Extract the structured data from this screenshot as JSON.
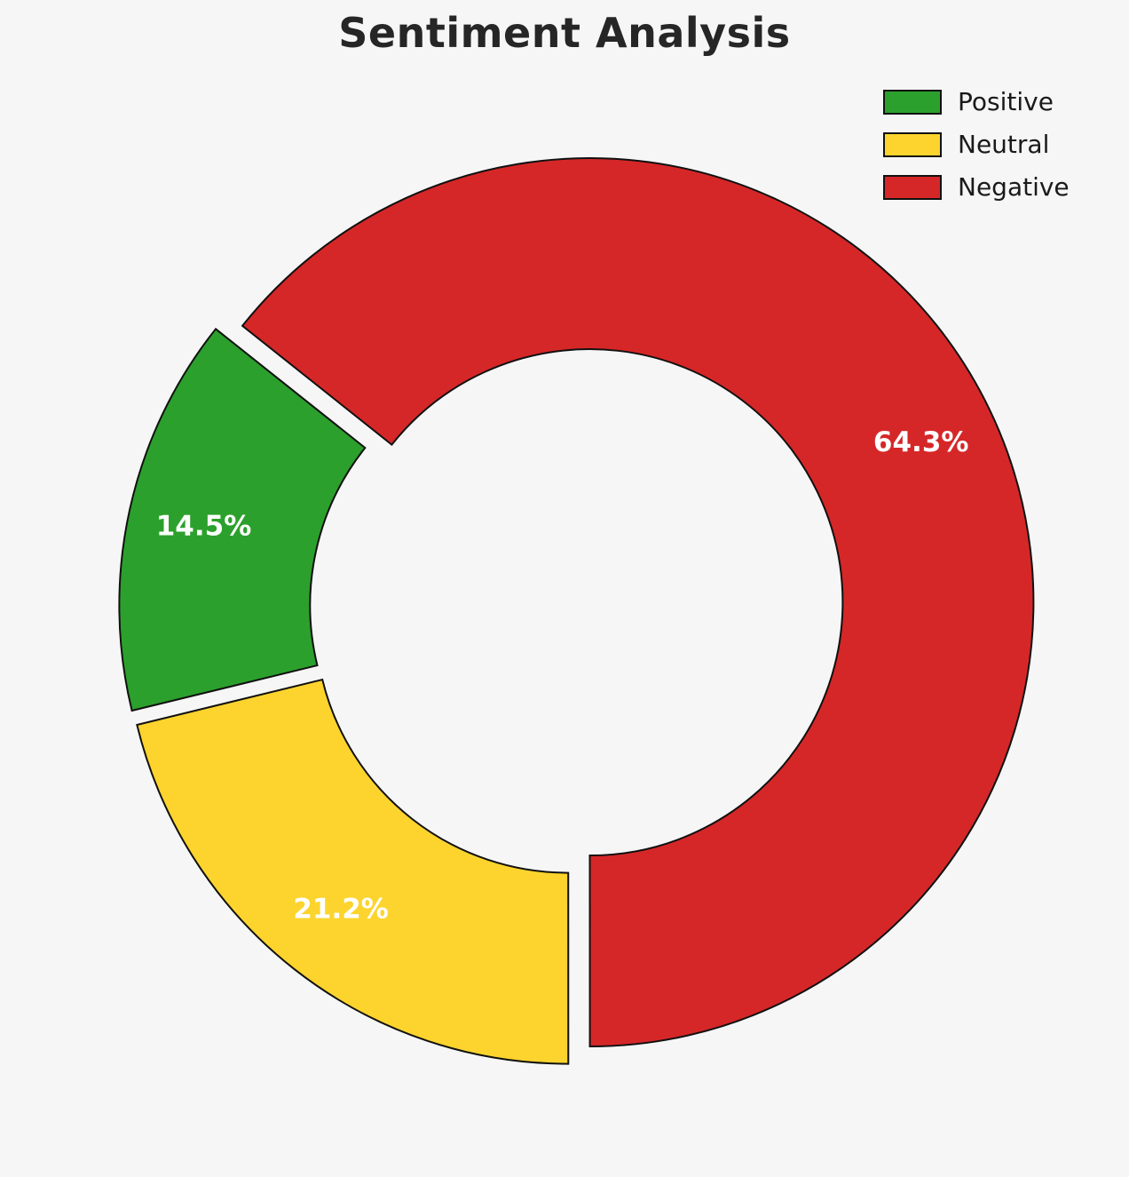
{
  "title": "Sentiment Analysis",
  "chart_data": {
    "type": "pie",
    "subtype": "donut",
    "title": "Sentiment Analysis",
    "labels": [
      "Positive",
      "Neutral",
      "Negative"
    ],
    "values": [
      14.5,
      21.2,
      64.3
    ],
    "value_labels": [
      "14.5%",
      "21.2%",
      "64.3%"
    ],
    "colors": [
      "#2ca02c",
      "#fcd42d",
      "#d62728"
    ],
    "start_angle": 141.5,
    "direction": "counterclockwise",
    "inner_radius_ratio": 0.57,
    "explode": 0.032,
    "edge_color": "#111111",
    "percent_label_color": "#ffffff",
    "background": "#f6f6f6",
    "legend_position": "upper right",
    "legend": [
      {
        "label": "Positive"
      },
      {
        "label": "Neutral"
      },
      {
        "label": "Negative"
      }
    ]
  }
}
